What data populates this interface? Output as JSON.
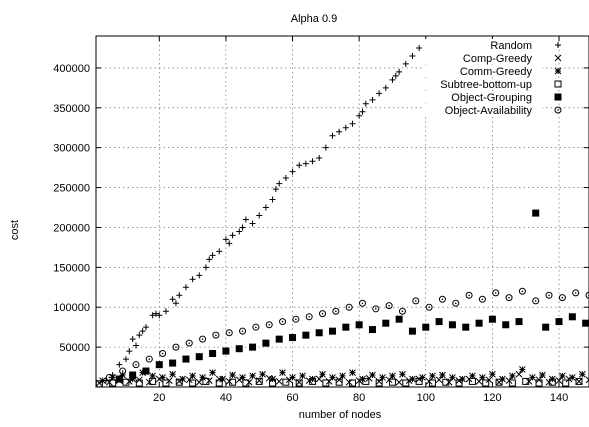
{
  "chart_data": {
    "type": "scatter",
    "title": "Alpha 0.9",
    "xlabel": "number of nodes",
    "ylabel": "cost",
    "xlim": [
      1,
      149
    ],
    "ylim": [
      0,
      440000
    ],
    "grid": true,
    "legend_position": "top-right",
    "x_ticks": [
      20,
      40,
      60,
      80,
      100,
      120,
      140
    ],
    "x_tick_labels": [
      "20",
      "40",
      "60",
      "80",
      "100",
      "120",
      "140"
    ],
    "y_ticks": [
      50000,
      100000,
      150000,
      200000,
      250000,
      300000,
      350000,
      400000
    ],
    "y_tick_labels": [
      "50000",
      "100000",
      "150000",
      "200000",
      "250000",
      "300000",
      "350000",
      "400000"
    ],
    "series": [
      {
        "name": "Random",
        "marker": "plus",
        "x": [
          4,
          6,
          8,
          10,
          11,
          12,
          13,
          14,
          15,
          16,
          18,
          19,
          20,
          22,
          24,
          25,
          26,
          28,
          30,
          32,
          34,
          35,
          36,
          38,
          40,
          41,
          42,
          44,
          45,
          46,
          48,
          50,
          52,
          54,
          55,
          56,
          58,
          60,
          62,
          64,
          66,
          68,
          70,
          72,
          74,
          76,
          78,
          80,
          81,
          82,
          84,
          86,
          88,
          90,
          91,
          92,
          94,
          96,
          98,
          100
        ],
        "y": [
          8000,
          15000,
          28000,
          35000,
          45000,
          60000,
          52000,
          65000,
          70000,
          75000,
          90000,
          92000,
          90000,
          95000,
          110000,
          105000,
          115000,
          125000,
          135000,
          140000,
          150000,
          160000,
          165000,
          170000,
          185000,
          180000,
          190000,
          195000,
          200000,
          210000,
          205000,
          215000,
          225000,
          235000,
          248000,
          255000,
          262000,
          270000,
          278000,
          280000,
          283000,
          287000,
          300000,
          315000,
          320000,
          325000,
          330000,
          340000,
          345000,
          355000,
          360000,
          368000,
          375000,
          385000,
          390000,
          395000,
          405000,
          415000,
          425000,
          430000
        ]
      },
      {
        "name": "Comp-Greedy",
        "marker": "cross",
        "x": [
          2,
          5,
          8,
          11,
          14,
          17,
          20,
          23,
          26,
          29,
          32,
          35,
          38,
          41,
          44,
          47,
          50,
          53,
          56,
          59,
          62,
          65,
          68,
          71,
          74,
          77,
          80,
          83,
          86,
          89,
          92,
          95,
          98,
          101,
          104,
          107,
          110,
          113,
          116,
          119,
          122,
          125,
          128,
          131,
          134,
          137,
          140,
          143,
          146,
          149
        ],
        "y": [
          5000,
          6000,
          8000,
          7000,
          9000,
          6000,
          10000,
          8000,
          7000,
          9000,
          6000,
          8000,
          10000,
          7000,
          9000,
          6000,
          8000,
          11000,
          7000,
          9000,
          6000,
          8000,
          10000,
          7000,
          9000,
          6000,
          8000,
          11000,
          7000,
          9000,
          6000,
          8000,
          10000,
          7000,
          9000,
          6000,
          8000,
          10000,
          7000,
          9000,
          6000,
          8000,
          16000,
          7000,
          9000,
          6000,
          8000,
          10000,
          7000,
          9000
        ]
      },
      {
        "name": "Comm-Greedy",
        "marker": "star",
        "x": [
          3,
          6,
          9,
          12,
          15,
          18,
          21,
          24,
          27,
          30,
          33,
          36,
          39,
          42,
          45,
          48,
          51,
          54,
          57,
          60,
          63,
          66,
          69,
          72,
          75,
          78,
          81,
          84,
          87,
          90,
          93,
          96,
          99,
          102,
          105,
          108,
          111,
          114,
          117,
          120,
          123,
          126,
          129,
          132,
          135,
          138,
          141,
          144,
          147
        ],
        "y": [
          8000,
          12000,
          15000,
          10000,
          18000,
          14000,
          12000,
          16000,
          10000,
          14000,
          12000,
          18000,
          10000,
          15000,
          12000,
          14000,
          16000,
          10000,
          18000,
          12000,
          14000,
          10000,
          16000,
          12000,
          14000,
          18000,
          10000,
          15000,
          12000,
          14000,
          16000,
          10000,
          12000,
          14000,
          15000,
          12000,
          10000,
          14000,
          12000,
          16000,
          10000,
          14000,
          22000,
          12000,
          15000,
          10000,
          14000,
          12000,
          16000
        ]
      },
      {
        "name": "Subtree-bottom-up",
        "marker": "square-open",
        "x": [
          2,
          6,
          10,
          14,
          18,
          22,
          26,
          30,
          34,
          38,
          42,
          46,
          50,
          54,
          58,
          62,
          66,
          70,
          74,
          78,
          82,
          86,
          90,
          94,
          98,
          102,
          106,
          110,
          114,
          118,
          122,
          126,
          130,
          134,
          138,
          142,
          146
        ],
        "y": [
          4000,
          5000,
          6000,
          5000,
          7000,
          5000,
          6000,
          5000,
          7000,
          5000,
          6000,
          5000,
          7000,
          5000,
          6000,
          5000,
          7000,
          5000,
          6000,
          5000,
          7000,
          5000,
          6000,
          5000,
          7000,
          5000,
          6000,
          5000,
          7000,
          5000,
          6000,
          5000,
          7000,
          5000,
          6000,
          5000,
          7000
        ]
      },
      {
        "name": "Object-Grouping",
        "marker": "square-filled",
        "x": [
          8,
          12,
          16,
          20,
          24,
          28,
          32,
          36,
          40,
          44,
          48,
          52,
          56,
          60,
          64,
          68,
          72,
          76,
          80,
          84,
          88,
          92,
          96,
          100,
          104,
          108,
          112,
          116,
          120,
          124,
          128,
          133,
          136,
          140,
          144,
          148
        ],
        "y": [
          10000,
          15000,
          20000,
          28000,
          30000,
          35000,
          38000,
          42000,
          45000,
          48000,
          50000,
          55000,
          60000,
          62000,
          65000,
          68000,
          70000,
          75000,
          78000,
          72000,
          80000,
          85000,
          70000,
          75000,
          82000,
          78000,
          75000,
          80000,
          85000,
          78000,
          82000,
          218000,
          75000,
          82000,
          88000,
          80000
        ]
      },
      {
        "name": "Object-Availability",
        "marker": "circle-open",
        "x": [
          5,
          9,
          13,
          17,
          21,
          25,
          29,
          33,
          37,
          41,
          45,
          49,
          53,
          57,
          61,
          65,
          69,
          73,
          77,
          81,
          85,
          89,
          93,
          97,
          101,
          105,
          109,
          113,
          117,
          121,
          125,
          129,
          133,
          137,
          141,
          145,
          149
        ],
        "y": [
          12000,
          20000,
          28000,
          35000,
          42000,
          50000,
          55000,
          60000,
          65000,
          68000,
          70000,
          75000,
          78000,
          82000,
          85000,
          88000,
          92000,
          95000,
          100000,
          105000,
          98000,
          102000,
          95000,
          108000,
          100000,
          110000,
          105000,
          115000,
          110000,
          118000,
          112000,
          120000,
          108000,
          115000,
          112000,
          118000,
          115000
        ]
      }
    ]
  }
}
